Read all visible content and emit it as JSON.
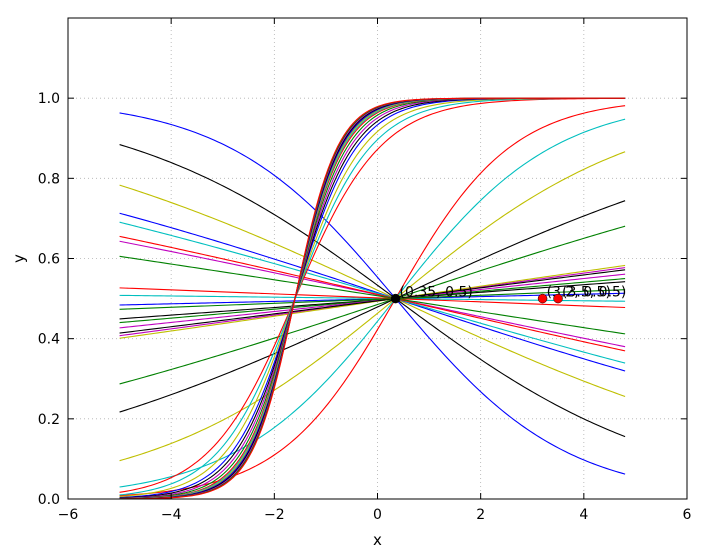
{
  "chart_data": {
    "type": "line",
    "xlabel": "x",
    "ylabel": "y",
    "xlim": [
      -6,
      6
    ],
    "ylim": [
      0,
      1.2
    ],
    "xticks": [
      -6,
      -4,
      -2,
      0,
      2,
      4,
      6
    ],
    "yticks": [
      0.0,
      0.2,
      0.4,
      0.6,
      0.8,
      1.0
    ],
    "xtick_labels": [
      "−6",
      "−4",
      "−2",
      "0",
      "2",
      "4",
      "6"
    ],
    "ytick_labels": [
      "0.0",
      "0.2",
      "0.4",
      "0.6",
      "0.8",
      "1.0"
    ],
    "grid": true,
    "x_domain": [
      -5,
      4.8
    ],
    "series": [
      {
        "color": "#ff0000",
        "k": 0.89,
        "x0": 0.35
      },
      {
        "color": "#0000ff",
        "k": -0.61,
        "x0": 0.35
      },
      {
        "color": "#000000",
        "k": -0.38,
        "x0": 0.35
      },
      {
        "color": "#bfbf00",
        "k": -0.24,
        "x0": 0.35
      },
      {
        "color": "#00bfbf",
        "k": 0.65,
        "x0": 0.35
      },
      {
        "color": "#bf00bf",
        "k": -0.11,
        "x0": 0.35
      },
      {
        "color": "#008000",
        "k": 0.17,
        "x0": 0.35
      },
      {
        "color": "#000000",
        "k": 0.24,
        "x0": 0.35
      },
      {
        "color": "#bfbf00",
        "k": 0.42,
        "x0": 0.35
      },
      {
        "color": "#0000ff",
        "k": -0.17,
        "x0": 0.35
      },
      {
        "color": "#00bfbf",
        "k": -0.15,
        "x0": 0.35
      },
      {
        "color": "#bf00bf",
        "k": 0.07,
        "x0": 0.35
      },
      {
        "color": "#ff0000",
        "k": -0.12,
        "x0": 0.35
      },
      {
        "color": "#008000",
        "k": -0.08,
        "x0": 0.35
      },
      {
        "color": "#0000ff",
        "k": 0.012,
        "x0": 0.35
      },
      {
        "color": "#000000",
        "k": 0.038,
        "x0": 0.35
      },
      {
        "color": "#bfbf00",
        "k": 0.075,
        "x0": 0.35
      },
      {
        "color": "#00bfbf",
        "k": -0.006,
        "x0": 0.35
      },
      {
        "color": "#ff0000",
        "k": -0.02,
        "x0": 0.35
      },
      {
        "color": "#008000",
        "k": 0.045,
        "x0": 0.35
      },
      {
        "color": "#bf00bf",
        "k": 0.055,
        "x0": 0.35
      },
      {
        "color": "#000000",
        "k": 0.065,
        "x0": 0.35
      },
      {
        "color": "#008000",
        "k": 0.02,
        "x0": 0.35
      },
      {
        "color": "#ff0000",
        "k": 1.2,
        "x0": -1.6
      },
      {
        "color": "#00bfbf",
        "k": 1.35,
        "x0": -1.6
      },
      {
        "color": "#bfbf00",
        "k": 1.5,
        "x0": -1.6
      },
      {
        "color": "#0000ff",
        "k": 1.65,
        "x0": -1.6
      },
      {
        "color": "#000000",
        "k": 1.75,
        "x0": -1.6
      },
      {
        "color": "#bf00bf",
        "k": 1.85,
        "x0": -1.6
      },
      {
        "color": "#008000",
        "k": 1.95,
        "x0": -1.6
      },
      {
        "color": "#ff0000",
        "k": 2.05,
        "x0": -1.6
      },
      {
        "color": "#00bfbf",
        "k": 2.1,
        "x0": -1.6
      },
      {
        "color": "#bfbf00",
        "k": 2.15,
        "x0": -1.6
      },
      {
        "color": "#0000ff",
        "k": 2.2,
        "x0": -1.6
      },
      {
        "color": "#000000",
        "k": 2.25,
        "x0": -1.6
      },
      {
        "color": "#bf00bf",
        "k": 2.3,
        "x0": -1.6
      },
      {
        "color": "#008000",
        "k": 2.35,
        "x0": -1.6
      },
      {
        "color": "#ff0000",
        "k": 2.4,
        "x0": -1.6
      }
    ],
    "points": [
      {
        "x": 0.35,
        "y": 0.5,
        "label": "(0.35, 0.5)",
        "color": "#000000"
      },
      {
        "x": 3.2,
        "y": 0.5,
        "label": "(3.2, 0.5)",
        "color": "#ff0000"
      },
      {
        "x": 3.5,
        "y": 0.5,
        "label": "(3.5, 0.5)",
        "color": "#ff0000"
      }
    ]
  }
}
